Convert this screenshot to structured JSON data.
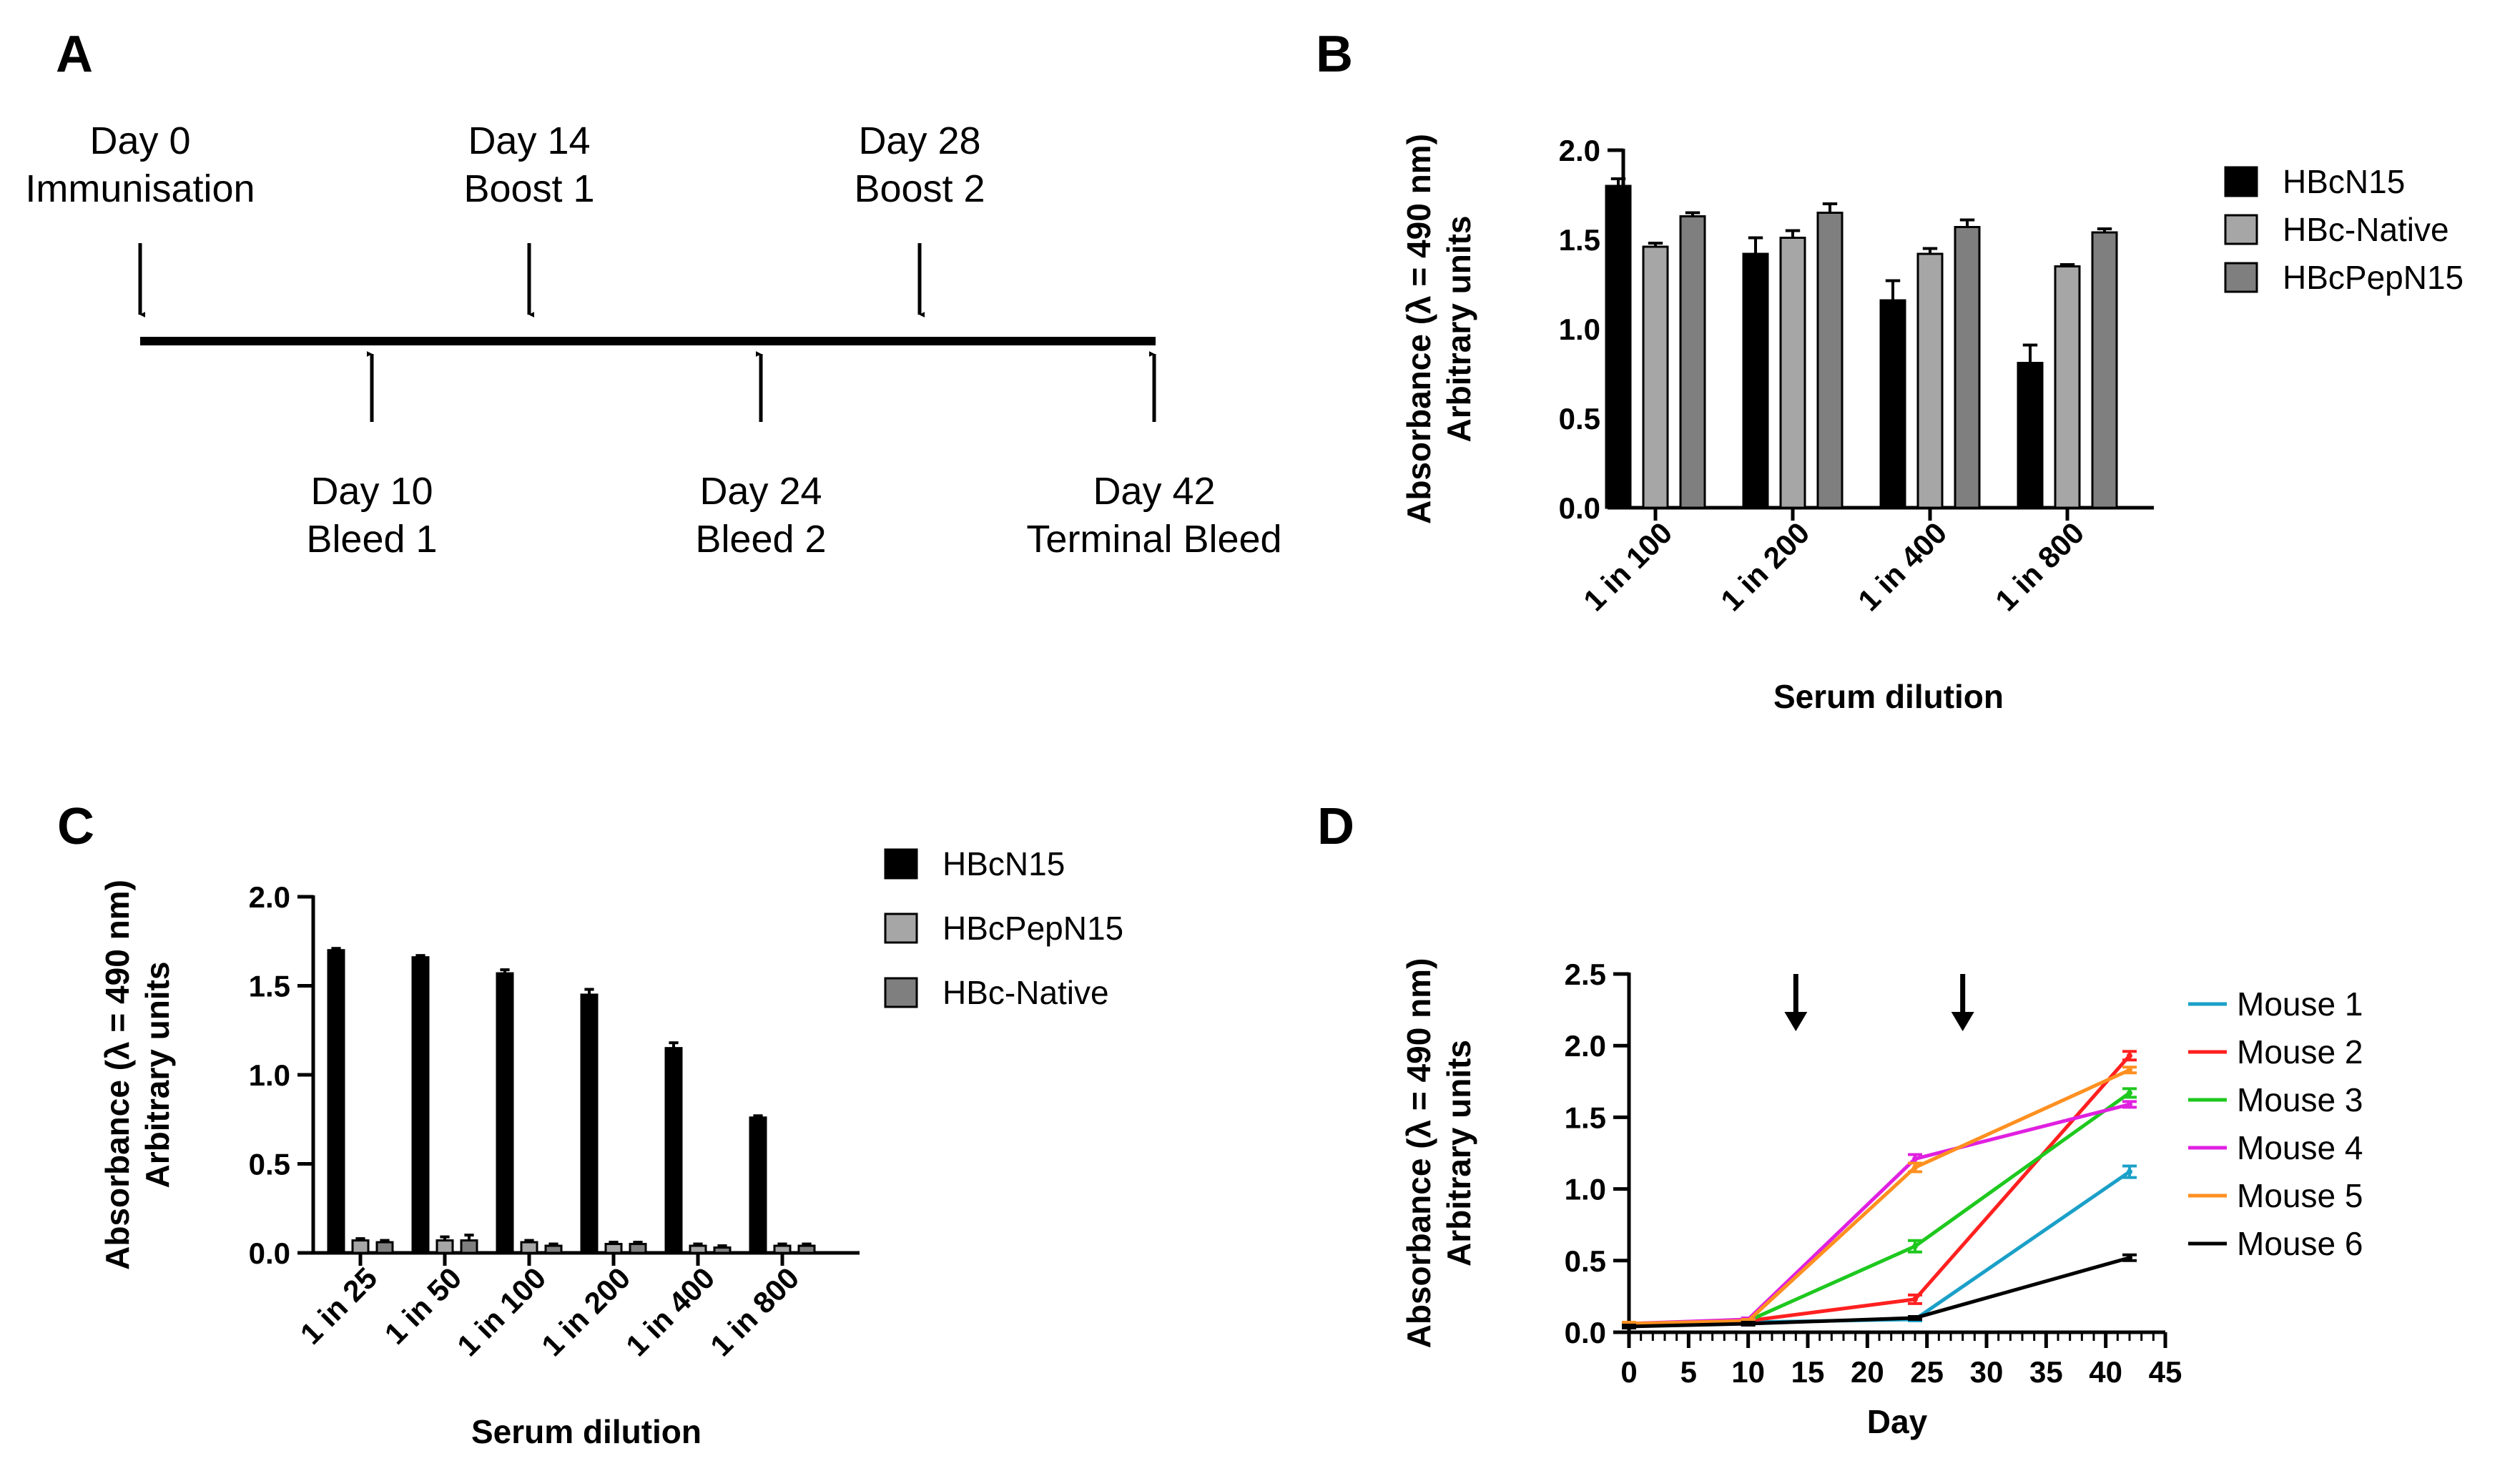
{
  "panel_letters": {
    "a": "A",
    "b": "B",
    "c": "C",
    "d": "D"
  },
  "timeline": {
    "above": [
      {
        "day": "Day 0",
        "event": "Immunisation"
      },
      {
        "day": "Day 14",
        "event": "Boost 1"
      },
      {
        "day": "Day 28",
        "event": "Boost 2"
      }
    ],
    "below": [
      {
        "day": "Day 10",
        "event": "Bleed 1"
      },
      {
        "day": "Day 24",
        "event": "Bleed 2"
      },
      {
        "day": "Day 42",
        "event": "Terminal Bleed"
      }
    ]
  },
  "chart_data": [
    {
      "panel": "B",
      "type": "bar",
      "title": "",
      "categories": [
        "1 in 100",
        "1 in 200",
        "1 in 400",
        "1 in 800"
      ],
      "series": [
        {
          "name": "HBcN15",
          "color": "#000000",
          "values": [
            1.8,
            1.42,
            1.16,
            0.81
          ],
          "errors": [
            0.04,
            0.09,
            0.11,
            0.1
          ]
        },
        {
          "name": "HBc-Native",
          "color": "#a6a6a6",
          "values": [
            1.46,
            1.51,
            1.42,
            1.35
          ],
          "errors": [
            0.02,
            0.04,
            0.03,
            0.01
          ]
        },
        {
          "name": "HBcPepN15",
          "color": "#7f7f7f",
          "values": [
            1.63,
            1.65,
            1.57,
            1.54
          ],
          "errors": [
            0.02,
            0.05,
            0.04,
            0.02
          ]
        }
      ],
      "xlabel": "Serum dilution",
      "ylabel_line1": "Absorbance (λ = 490 nm)",
      "ylabel_line2": "Arbitrary units",
      "ylim": [
        0,
        2.0
      ],
      "yticks": [
        "0.0",
        "0.5",
        "1.0",
        "1.5",
        "2.0"
      ]
    },
    {
      "panel": "C",
      "type": "bar",
      "title": "",
      "categories": [
        "1 in 25",
        "1 in 50",
        "1 in 100",
        "1 in 200",
        "1 in 400",
        "1 in 800"
      ],
      "series": [
        {
          "name": "HBcN15",
          "color": "#000000",
          "values": [
            1.7,
            1.66,
            1.57,
            1.45,
            1.15,
            0.76
          ],
          "errors": [
            0.01,
            0.01,
            0.02,
            0.03,
            0.03,
            0.01
          ]
        },
        {
          "name": "HBcPepN15",
          "color": "#a6a6a6",
          "values": [
            0.07,
            0.07,
            0.06,
            0.05,
            0.04,
            0.04
          ],
          "errors": [
            0.01,
            0.02,
            0.01,
            0.01,
            0.01,
            0.01
          ]
        },
        {
          "name": "HBc-Native",
          "color": "#7f7f7f",
          "values": [
            0.06,
            0.07,
            0.04,
            0.05,
            0.03,
            0.04
          ],
          "errors": [
            0.01,
            0.03,
            0.01,
            0.01,
            0.01,
            0.01
          ]
        }
      ],
      "xlabel": "Serum dilution",
      "ylabel_line1": "Absorbance (λ = 490 nm)",
      "ylabel_line2": "Arbitrary units",
      "ylim": [
        0,
        2.0
      ],
      "yticks": [
        "0.0",
        "0.5",
        "1.0",
        "1.5",
        "2.0"
      ]
    },
    {
      "panel": "D",
      "type": "line",
      "title": "",
      "x": [
        0,
        10,
        24,
        42
      ],
      "series": [
        {
          "name": "Mouse 1",
          "color": "#1aa0c8",
          "values": [
            0.05,
            0.07,
            0.09,
            1.12
          ],
          "errors": [
            0.01,
            0.01,
            0.01,
            0.04
          ]
        },
        {
          "name": "Mouse 2",
          "color": "#ff2020",
          "values": [
            0.05,
            0.08,
            0.23,
            1.93
          ],
          "errors": [
            0.01,
            0.01,
            0.03,
            0.03
          ]
        },
        {
          "name": "Mouse 3",
          "color": "#1ec81e",
          "values": [
            0.05,
            0.08,
            0.6,
            1.67
          ],
          "errors": [
            0.01,
            0.01,
            0.04,
            0.03
          ]
        },
        {
          "name": "Mouse 4",
          "color": "#e020e0",
          "values": [
            0.06,
            0.09,
            1.21,
            1.59
          ],
          "errors": [
            0.01,
            0.01,
            0.03,
            0.02
          ]
        },
        {
          "name": "Mouse 5",
          "color": "#ff9020",
          "values": [
            0.06,
            0.08,
            1.15,
            1.83
          ],
          "errors": [
            0.01,
            0.01,
            0.03,
            0.02
          ]
        },
        {
          "name": "Mouse 6",
          "color": "#000000",
          "values": [
            0.04,
            0.06,
            0.1,
            0.52
          ],
          "errors": [
            0.01,
            0.01,
            0.01,
            0.02
          ]
        }
      ],
      "boost_days": [
        14,
        28
      ],
      "xlabel": "Day",
      "ylabel_line1": "Absorbance (λ = 490 nm)",
      "ylabel_line2": "Arbitrary units",
      "xlim": [
        0,
        45
      ],
      "ylim": [
        0,
        2.5
      ],
      "xticks": [
        "0",
        "5",
        "10",
        "15",
        "20",
        "25",
        "30",
        "35",
        "40",
        "45"
      ],
      "yticks": [
        "0.0",
        "0.5",
        "1.0",
        "1.5",
        "2.0",
        "2.5"
      ]
    }
  ]
}
